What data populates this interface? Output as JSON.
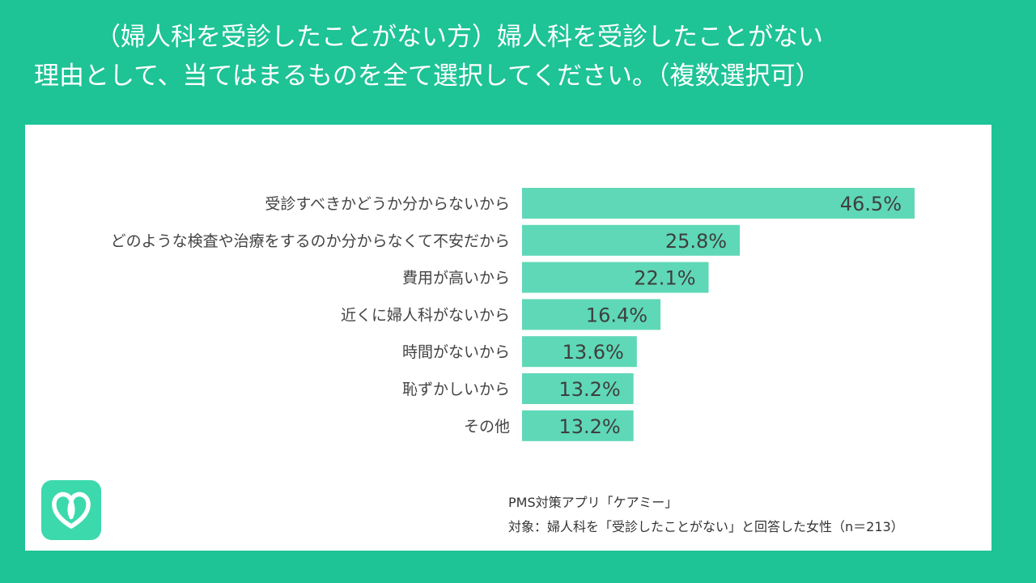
{
  "title": {
    "line1": "（婦人科を受診したことがない方）婦人科を受診したことがない",
    "line2": "理由として、当てはまるものを全て選択してください。（複数選択可）"
  },
  "chart_data": {
    "type": "bar",
    "orientation": "horizontal",
    "categories": [
      "受診すべきかどうか分からないから",
      "どのような検査や治療をするのか分からなくて不安だから",
      "費用が高いから",
      "近くに婦人科がないから",
      "時間がないから",
      "恥ずかしいから",
      "その他"
    ],
    "values": [
      46.5,
      25.8,
      22.1,
      16.4,
      13.6,
      13.2,
      13.2
    ],
    "value_labels": [
      "46.5%",
      "25.8%",
      "22.1%",
      "16.4%",
      "13.6%",
      "13.2%",
      "13.2%"
    ],
    "unit": "%",
    "xlim": [
      0,
      50
    ],
    "grid": false,
    "legend": "none",
    "bar_color": "#5fd8b7"
  },
  "footer": {
    "source": "PMS対策アプリ「ケアミー」",
    "target": "対象：婦人科を「受診したことがない」と回答した女性（n＝213）"
  },
  "logo": {
    "icon": "careme-heart-icon"
  },
  "colors": {
    "background": "#1ec396",
    "panel": "#ffffff",
    "bar": "#5fd8b7",
    "logo": "#3cd9ad"
  }
}
